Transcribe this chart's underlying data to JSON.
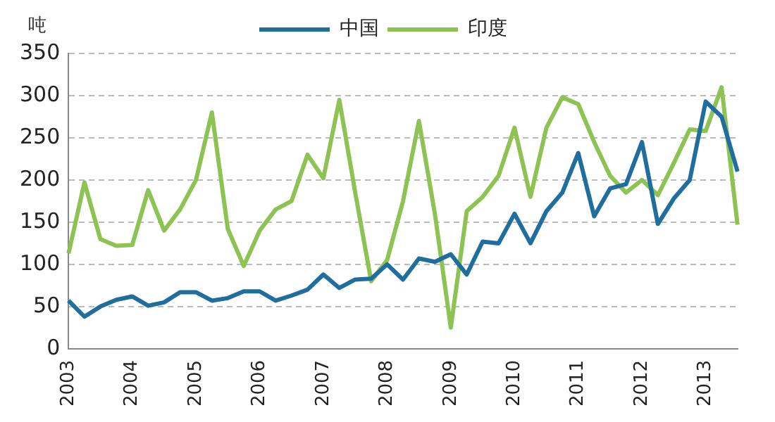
{
  "chart_data": {
    "type": "line",
    "ylabel": "吨",
    "categories": [
      "2003",
      null,
      null,
      null,
      "2004",
      null,
      null,
      null,
      "2005",
      null,
      null,
      null,
      "2006",
      null,
      null,
      null,
      "2007",
      null,
      null,
      null,
      "2008",
      null,
      null,
      null,
      "2009",
      null,
      null,
      null,
      "2010",
      null,
      null,
      null,
      "2011",
      null,
      null,
      null,
      "2012",
      null,
      null,
      null,
      "2013",
      null,
      null
    ],
    "series": [
      {
        "name": "中国",
        "color": "#1f6e9e",
        "values": [
          57,
          38,
          50,
          58,
          62,
          51,
          55,
          67,
          67,
          57,
          60,
          68,
          68,
          57,
          63,
          70,
          88,
          72,
          82,
          83,
          100,
          82,
          107,
          103,
          112,
          88,
          127,
          125,
          160,
          125,
          163,
          185,
          232,
          157,
          190,
          195,
          245,
          148,
          178,
          200,
          293,
          275,
          210
        ]
      },
      {
        "name": "印度",
        "color": "#8dc352",
        "values": [
          113,
          197,
          130,
          122,
          123,
          188,
          140,
          165,
          200,
          280,
          142,
          98,
          140,
          165,
          175,
          230,
          202,
          295,
          185,
          80,
          105,
          175,
          270,
          160,
          25,
          163,
          180,
          205,
          262,
          180,
          262,
          298,
          290,
          245,
          205,
          185,
          200,
          182,
          220,
          260,
          258,
          310,
          147
        ]
      }
    ],
    "ylim": [
      0,
      350
    ],
    "yticks": [
      0,
      50,
      100,
      150,
      200,
      250,
      300,
      350
    ],
    "grid": "y",
    "legend": "top",
    "marker": "none",
    "line_style": "solid"
  }
}
